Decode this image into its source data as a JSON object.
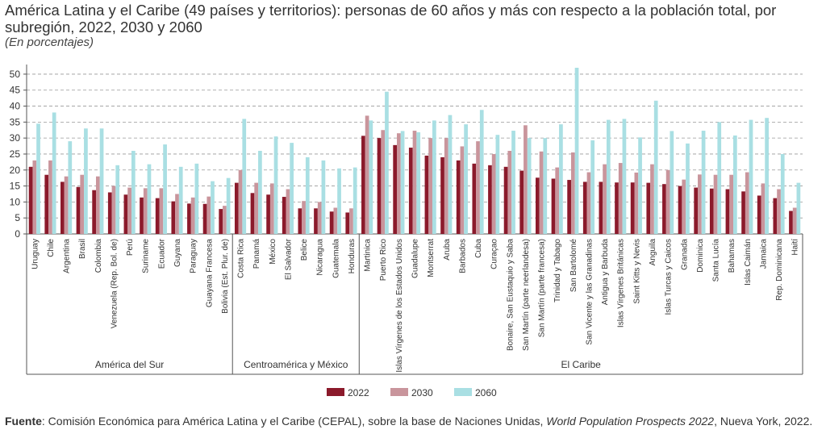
{
  "chart_data": {
    "type": "bar",
    "title": "América Latina y el Caribe (49 países y territorios): personas de 60 años y más con respecto a la población total, por subregión, 2022, 2030 y 2060",
    "subtitle": "(En porcentajes)",
    "groups": [
      {
        "name": "América del Sur",
        "categories": [
          "Uruguay",
          "Chile",
          "Argentina",
          "Brasil",
          "Colombia",
          "Venezuela (Rep. Bol. de)",
          "Perú",
          "Suriname",
          "Ecuador",
          "Guyana",
          "Paraguay",
          "Guayana Francesa",
          "Bolivia (Est. Plur. de)"
        ]
      },
      {
        "name": "Centroamérica y México",
        "categories": [
          "Costa Rica",
          "Panamá",
          "México",
          "El Salvador",
          "Belice",
          "Nicaragua",
          "Guatemala",
          "Honduras"
        ]
      },
      {
        "name": "El Caribe",
        "categories": [
          "Martinica",
          "Puerto Rico",
          "Islas Vírgenes de los Estados Unidos",
          "Guadalupe",
          "Montserrat",
          "Aruba",
          "Barbados",
          "Cuba",
          "Curaçao",
          "Bonaire, San Eustaquio y Saba",
          "San Martín (parte neerlandesa)",
          "San Martín (parte francesa)",
          "Trinidad y Tabago",
          "San Bartolomé",
          "San Vicente y las Granadinas",
          "Antigua y Barbuda",
          "Islas Vírgenes Británicas",
          "Saint Kitts y Nevis",
          "Anguila",
          "Islas Turcas y Caicos",
          "Granada",
          "Dominica",
          "Santa Lucía",
          "Bahamas",
          "Islas Caimán",
          "Jamaica",
          "Rep. Dominicana",
          "Haití"
        ]
      }
    ],
    "series": [
      {
        "name": "2022",
        "color": "#8b1a2b",
        "values": [
          21,
          18.5,
          16.3,
          14.7,
          13.7,
          13,
          12.3,
          11.4,
          11.2,
          10.2,
          9.5,
          9.4,
          7.8,
          16,
          12.8,
          12.3,
          11.6,
          8,
          8,
          7,
          6.7,
          30.7,
          30,
          27.8,
          27,
          24.5,
          24,
          23,
          22,
          21.5,
          21,
          19.8,
          17.6,
          17.3,
          16.9,
          16.3,
          16.3,
          16.1,
          16.1,
          16,
          15.6,
          15,
          14.5,
          14.2,
          14,
          13.3,
          12,
          11.2,
          7.2
        ]
      },
      {
        "name": "2030",
        "color": "#c9959c",
        "values": [
          23,
          23,
          18,
          18.5,
          18,
          15,
          14.5,
          14.3,
          14.3,
          12.5,
          11.4,
          11.7,
          8.8,
          20,
          16,
          15.8,
          14,
          10.3,
          10,
          8.2,
          8,
          37,
          32.5,
          31.5,
          32.3,
          30,
          30,
          27.4,
          29,
          25,
          26,
          34,
          25.8,
          20.8,
          25.5,
          19.3,
          21.8,
          22.2,
          19.2,
          21.8,
          20,
          17,
          18.6,
          18.5,
          18.5,
          19.3,
          15.8,
          14,
          8.2
        ]
      },
      {
        "name": "2060",
        "color": "#a9dfe3",
        "values": [
          34.5,
          38,
          29,
          33,
          33,
          21.5,
          26,
          21.8,
          28,
          21,
          22,
          16.5,
          17.5,
          36,
          26,
          30.5,
          28.5,
          24,
          23,
          20.5,
          20.8,
          35.5,
          44.5,
          32.2,
          31.8,
          35.5,
          37.2,
          34.3,
          38.8,
          31,
          32.3,
          30,
          30,
          34.3,
          52,
          29.3,
          35.7,
          36,
          30.2,
          41.7,
          32.2,
          28.3,
          32.3,
          35,
          30.8,
          35.7,
          36.3,
          25,
          16
        ]
      }
    ],
    "ylim": [
      0,
      52
    ],
    "yticks": [
      0,
      5,
      10,
      15,
      20,
      25,
      30,
      35,
      40,
      45,
      50
    ],
    "grid": true,
    "source_label": "Fuente",
    "source_parts": [
      ": Comisión Económica para América Latina y el Caribe (CEPAL), sobre la base de Naciones Unidas, ",
      "World Population Prospects 2022",
      ", Nueva York, 2022."
    ]
  }
}
